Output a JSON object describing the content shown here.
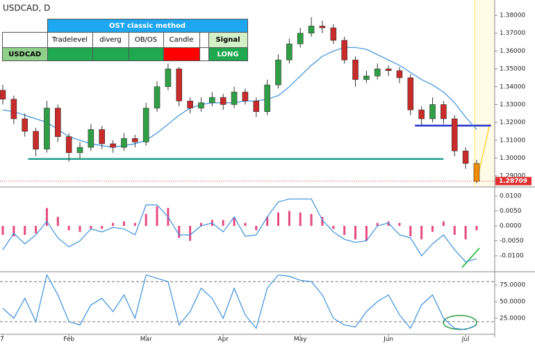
{
  "chart_data": [
    {
      "type": "candlestick",
      "title": "USDCAD, D",
      "categories": [
        "7",
        null,
        null,
        null,
        null,
        null,
        "Feb",
        null,
        null,
        null,
        null,
        null,
        null,
        "Mar",
        null,
        null,
        null,
        null,
        null,
        null,
        "Apr",
        null,
        null,
        null,
        null,
        null,
        null,
        "May",
        null,
        null,
        null,
        null,
        null,
        null,
        null,
        "Jun",
        null,
        null,
        null,
        null,
        null,
        null,
        "Jul",
        null
      ],
      "open": [
        1.338,
        1.333,
        1.322,
        1.315,
        1.305,
        1.328,
        1.312,
        1.303,
        1.306,
        1.316,
        1.308,
        1.306,
        1.311,
        1.309,
        1.328,
        1.34,
        1.35,
        1.332,
        1.328,
        1.331,
        1.334,
        1.33,
        1.337,
        1.332,
        1.326,
        1.341,
        1.355,
        1.364,
        1.37,
        1.374,
        1.373,
        1.366,
        1.355,
        1.344,
        1.346,
        1.35,
        1.349,
        1.345,
        1.327,
        1.322,
        1.33,
        1.322,
        1.304,
        1.297
      ],
      "high": [
        1.341,
        1.335,
        1.325,
        1.317,
        1.332,
        1.33,
        1.314,
        1.309,
        1.319,
        1.318,
        1.31,
        1.314,
        1.313,
        1.331,
        1.343,
        1.353,
        1.351,
        1.334,
        1.334,
        1.337,
        1.336,
        1.34,
        1.339,
        1.334,
        1.344,
        1.358,
        1.367,
        1.373,
        1.379,
        1.377,
        1.375,
        1.368,
        1.357,
        1.349,
        1.353,
        1.352,
        1.351,
        1.347,
        1.329,
        1.334,
        1.332,
        1.324,
        1.306,
        1.299
      ],
      "low": [
        1.33,
        1.319,
        1.312,
        1.301,
        1.303,
        1.309,
        1.298,
        1.3,
        1.304,
        1.305,
        1.303,
        1.304,
        1.306,
        1.307,
        1.326,
        1.338,
        1.329,
        1.325,
        1.326,
        1.329,
        1.327,
        1.328,
        1.33,
        1.323,
        1.324,
        1.339,
        1.353,
        1.362,
        1.368,
        1.37,
        1.364,
        1.353,
        1.34,
        1.342,
        1.344,
        1.346,
        1.342,
        1.324,
        1.318,
        1.32,
        1.319,
        1.301,
        1.294,
        1.286
      ],
      "close": [
        1.333,
        1.322,
        1.315,
        1.305,
        1.328,
        1.312,
        1.303,
        1.306,
        1.316,
        1.308,
        1.306,
        1.311,
        1.309,
        1.328,
        1.34,
        1.35,
        1.332,
        1.328,
        1.331,
        1.334,
        1.33,
        1.337,
        1.332,
        1.326,
        1.341,
        1.355,
        1.364,
        1.37,
        1.374,
        1.373,
        1.366,
        1.355,
        1.344,
        1.346,
        1.35,
        1.349,
        1.345,
        1.327,
        1.322,
        1.33,
        1.322,
        1.304,
        1.297,
        1.287
      ],
      "up_color": "#2f9e44",
      "down_color": "#c92a2a",
      "last_color": "#f08c00",
      "moving_average": {
        "color": "#3a8fdc",
        "values": [
          1.327,
          1.326,
          1.324,
          1.322,
          1.32,
          1.316,
          1.312,
          1.31,
          1.308,
          1.307,
          1.306,
          1.307,
          1.308,
          1.31,
          1.314,
          1.319,
          1.324,
          1.328,
          1.33,
          1.331,
          1.331,
          1.331,
          1.332,
          1.332,
          1.333,
          1.335,
          1.34,
          1.346,
          1.352,
          1.357,
          1.36,
          1.362,
          1.362,
          1.361,
          1.358,
          1.355,
          1.352,
          1.348,
          1.344,
          1.341,
          1.337,
          1.331,
          1.323,
          1.316
        ]
      },
      "levels": [
        {
          "value": 1.2995,
          "start": 2.3,
          "end": 40,
          "color": "#1f9e89"
        },
        {
          "value": 1.3182,
          "start": 37.4,
          "end": 44.3,
          "color": "#1f2fd0"
        }
      ],
      "last_price": {
        "value": 1.28709,
        "label": "1.28709",
        "color": "#e03131"
      },
      "ylim": [
        1.2842,
        1.3886
      ],
      "yticks": [
        {
          "value": 1.29,
          "label": "1.29000"
        },
        {
          "value": 1.3,
          "label": "1.30000"
        },
        {
          "value": 1.31,
          "label": "1.31000"
        },
        {
          "value": 1.32,
          "label": "1.32000"
        },
        {
          "value": 1.33,
          "label": "1.33000"
        },
        {
          "value": 1.34,
          "label": "1.34000"
        },
        {
          "value": 1.35,
          "label": "1.35000"
        },
        {
          "value": 1.36,
          "label": "1.36000"
        },
        {
          "value": 1.37,
          "label": "1.37000"
        },
        {
          "value": 1.38,
          "label": "1.38000"
        }
      ]
    },
    {
      "type": "macd",
      "histogram": {
        "color": "#e64980",
        "values": [
          -0.003,
          -0.0035,
          -0.003,
          -0.0025,
          0.006,
          0.003,
          -0.0015,
          -0.002,
          -0.001,
          -0.001,
          0.001,
          0.0015,
          0.001,
          0.004,
          0.0065,
          0.006,
          -0.004,
          -0.005,
          0.001,
          0.002,
          0.002,
          0.003,
          0.001,
          -0.0015,
          0.003,
          0.0045,
          0.005,
          0.0045,
          0.004,
          0.003,
          -0.001,
          -0.003,
          -0.0045,
          -0.005,
          0.001,
          0.0015,
          0.001,
          -0.0035,
          -0.0045,
          -0.002,
          0.0015,
          -0.003,
          -0.0045,
          -0.0015
        ]
      },
      "line": {
        "color": "#3a8fdc",
        "values": [
          -0.008,
          -0.0025,
          -0.006,
          -0.003,
          0.0015,
          -0.004,
          -0.007,
          -0.005,
          -0.001,
          -0.002,
          -0.0005,
          -0.001,
          -0.003,
          0.007,
          0.007,
          0.003,
          -0.003,
          -0.003,
          0.0,
          0.001,
          -0.002,
          0.003,
          -0.0035,
          -0.003,
          0.003,
          0.008,
          0.009,
          0.009,
          0.009,
          0.002,
          -0.002,
          -0.0045,
          -0.0055,
          -0.005,
          0.0,
          0.001,
          -0.003,
          -0.004,
          -0.01,
          -0.006,
          -0.003,
          -0.008,
          -0.012,
          -0.011
        ]
      },
      "ylim": [
        -0.0151,
        0.0128
      ],
      "yticks": [
        {
          "value": -0.01,
          "label": "-0.0100"
        },
        {
          "value": -0.005,
          "label": "-0.0050"
        },
        {
          "value": 0,
          "label": "0.0000"
        },
        {
          "value": 0.005,
          "label": "0.0050"
        },
        {
          "value": 0.01,
          "label": "0.0100"
        }
      ]
    },
    {
      "type": "line",
      "color": "#3a8fdc",
      "values": [
        40,
        25,
        55,
        20,
        90,
        60,
        20,
        15,
        45,
        55,
        35,
        60,
        25,
        90,
        85,
        80,
        15,
        35,
        70,
        55,
        25,
        70,
        30,
        10,
        70,
        90,
        88,
        82,
        80,
        60,
        25,
        15,
        12,
        35,
        50,
        60,
        30,
        10,
        45,
        60,
        25,
        10,
        8,
        15
      ],
      "levels": [
        80,
        20
      ],
      "ylim": [
        2.1,
        93.75
      ],
      "yticks": [
        {
          "value": 25,
          "label": "25.0000"
        },
        {
          "value": 50,
          "label": "50.0000"
        },
        {
          "value": 75,
          "label": "75.0000"
        }
      ]
    }
  ],
  "table": {
    "title": "OST classic method",
    "columns": [
      "Tradelevel",
      "diverg",
      "OB/OS",
      "Candle",
      "Signal"
    ],
    "row": {
      "symbol": "USDCAD",
      "signal": "LONG"
    },
    "cell_colors": [
      "#1fa84f",
      "#1fa84f",
      "#1fa84f",
      "#ff0000",
      "#1fa84f"
    ]
  }
}
